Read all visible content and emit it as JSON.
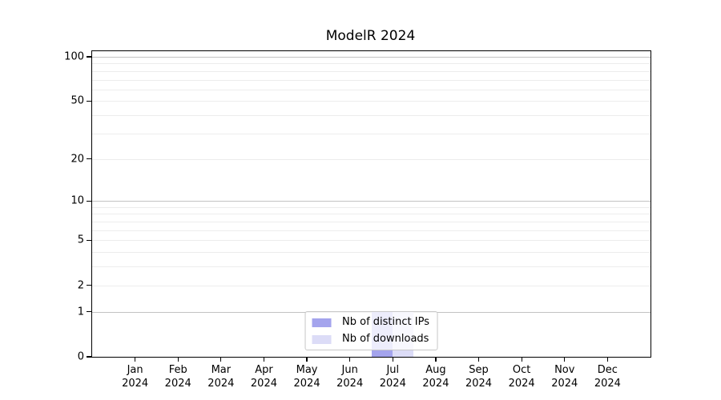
{
  "chart_data": {
    "type": "bar",
    "title": "ModelR 2024",
    "categories": [
      "Jan 2024",
      "Feb 2024",
      "Mar 2024",
      "Apr 2024",
      "May 2024",
      "Jun 2024",
      "Jul 2024",
      "Aug 2024",
      "Sep 2024",
      "Oct 2024",
      "Nov 2024",
      "Dec 2024"
    ],
    "series": [
      {
        "name": "Nb of distinct IPs",
        "color": "#a4a4ed",
        "values": [
          0,
          0,
          0,
          0,
          0,
          0,
          1,
          0,
          0,
          0,
          0,
          0
        ]
      },
      {
        "name": "Nb of downloads",
        "color": "#dcdcf7",
        "values": [
          0,
          0,
          0,
          0,
          0,
          0,
          1,
          0,
          0,
          0,
          0,
          0
        ]
      }
    ],
    "xlabel": "",
    "ylabel": "",
    "y_scale": "log1p",
    "y_ticks": [
      0,
      1,
      2,
      5,
      10,
      20,
      50,
      100
    ],
    "y_major_gridlines": [
      1,
      10,
      100
    ],
    "y_minor_gridlines": [
      2,
      3,
      4,
      5,
      6,
      7,
      8,
      9,
      20,
      30,
      40,
      50,
      60,
      70,
      80,
      90
    ],
    "ylim": [
      0,
      109
    ],
    "grid": true,
    "legend_position": "lower center"
  },
  "style": {
    "background": "#ffffff",
    "axis_color": "#000000",
    "major_grid_color": "#c2c2c2",
    "minor_grid_color": "#ececec",
    "text_color": "#000000"
  }
}
